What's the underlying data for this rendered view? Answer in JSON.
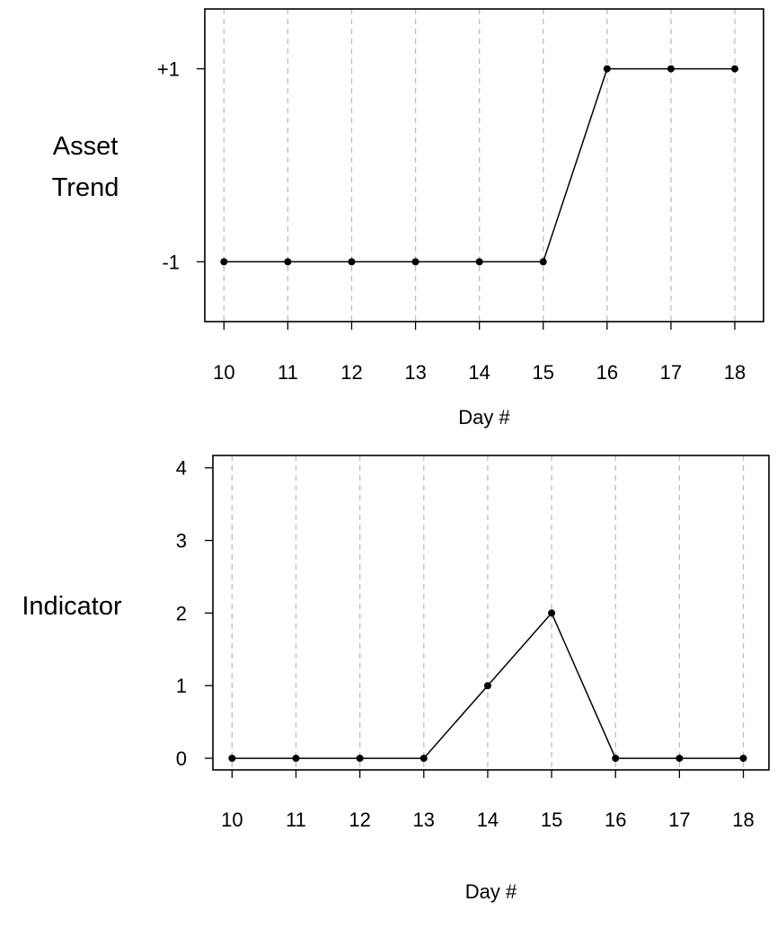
{
  "chart_data": [
    {
      "type": "line",
      "title": "",
      "ylabel_lines": [
        "Asset",
        "Trend"
      ],
      "xlabel": "Day #",
      "x": [
        10,
        11,
        12,
        13,
        14,
        15,
        16,
        17,
        18
      ],
      "x_tick_labels": [
        "10",
        "11",
        "12",
        "13",
        "14",
        "15",
        "16",
        "17",
        "18"
      ],
      "y_ticks": [
        -1,
        1
      ],
      "y_tick_labels": [
        "-1",
        "+1"
      ],
      "series": [
        {
          "values": [
            -1,
            -1,
            -1,
            -1,
            -1,
            -1,
            1,
            1,
            1
          ]
        }
      ],
      "xlim": [
        9.7,
        18.45
      ],
      "ylim": [
        -1.62,
        1.62
      ],
      "grid": "vertical dashed",
      "line_color": "#000000",
      "grid_color": "#bdbdbd"
    },
    {
      "type": "line",
      "title": "",
      "ylabel_lines": [
        "Indicator"
      ],
      "xlabel": "Day #",
      "x": [
        10,
        11,
        12,
        13,
        14,
        15,
        16,
        17,
        18
      ],
      "x_tick_labels": [
        "10",
        "11",
        "12",
        "13",
        "14",
        "15",
        "16",
        "17",
        "18"
      ],
      "y_ticks": [
        0,
        1,
        2,
        3,
        4
      ],
      "y_tick_labels": [
        "0",
        "1",
        "2",
        "3",
        "4"
      ],
      "series": [
        {
          "values": [
            0,
            0,
            0,
            0,
            1,
            2,
            0,
            0,
            0
          ]
        }
      ],
      "xlim": [
        9.7,
        18.4
      ],
      "ylim": [
        -0.16,
        4.17
      ],
      "grid": "vertical dashed",
      "line_color": "#000000",
      "grid_color": "#bdbdbd"
    }
  ]
}
